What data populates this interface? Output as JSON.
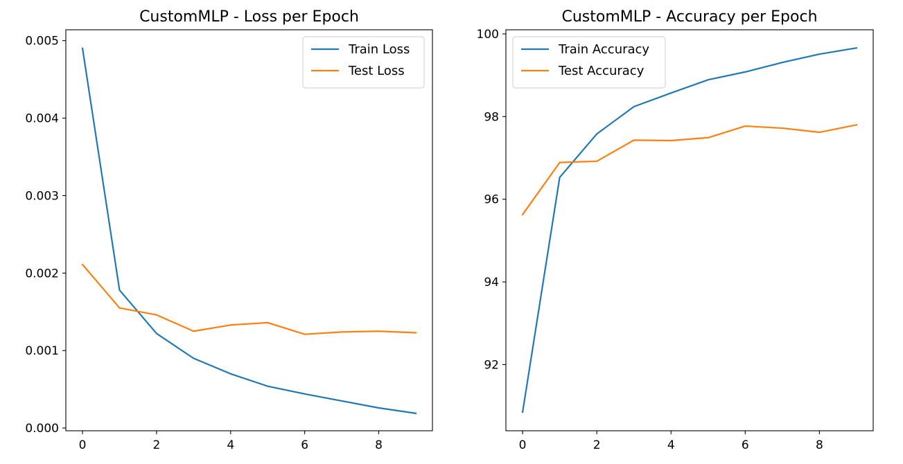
{
  "chart_data": [
    {
      "type": "line",
      "title": "CustomMLP - Loss per Epoch",
      "xlabel": "",
      "ylabel": "",
      "x": [
        0,
        1,
        2,
        3,
        4,
        5,
        6,
        7,
        8,
        9
      ],
      "xlim": [
        -0.45,
        9.45
      ],
      "ylim": [
        -3.5e-05,
        0.00514
      ],
      "xticks": [
        0,
        2,
        4,
        6,
        8
      ],
      "xtick_labels": [
        "0",
        "2",
        "4",
        "6",
        "8"
      ],
      "yticks": [
        0.0,
        0.001,
        0.002,
        0.003,
        0.004,
        0.005
      ],
      "ytick_labels": [
        "0.000",
        "0.001",
        "0.002",
        "0.003",
        "0.004",
        "0.005"
      ],
      "grid": false,
      "legend_position": "top-right",
      "series": [
        {
          "name": "Train Loss",
          "color": "#1f77b4",
          "values": [
            0.0049,
            0.00178,
            0.00122,
            0.0009,
            0.0007,
            0.00054,
            0.00044,
            0.00035,
            0.00026,
            0.00019
          ]
        },
        {
          "name": "Test Loss",
          "color": "#ff7f0e",
          "values": [
            0.00211,
            0.00155,
            0.00146,
            0.00125,
            0.00133,
            0.00136,
            0.00121,
            0.00124,
            0.00125,
            0.00123
          ]
        }
      ]
    },
    {
      "type": "line",
      "title": "CustomMLP - Accuracy per Epoch",
      "xlabel": "",
      "ylabel": "",
      "x": [
        0,
        1,
        2,
        3,
        4,
        5,
        6,
        7,
        8,
        9
      ],
      "xlim": [
        -0.45,
        9.45
      ],
      "ylim": [
        90.4,
        100.1
      ],
      "xticks": [
        0,
        2,
        4,
        6,
        8
      ],
      "xtick_labels": [
        "0",
        "2",
        "4",
        "6",
        "8"
      ],
      "yticks": [
        92,
        94,
        96,
        98,
        100
      ],
      "ytick_labels": [
        "92",
        "94",
        "96",
        "98",
        "100"
      ],
      "grid": false,
      "legend_position": "top-left",
      "series": [
        {
          "name": "Train Accuracy",
          "color": "#1f77b4",
          "values": [
            90.85,
            96.53,
            97.58,
            98.24,
            98.57,
            98.89,
            99.08,
            99.31,
            99.51,
            99.66
          ]
        },
        {
          "name": "Test Accuracy",
          "color": "#ff7f0e",
          "values": [
            95.63,
            96.89,
            96.92,
            97.43,
            97.42,
            97.49,
            97.77,
            97.72,
            97.62,
            97.8
          ]
        }
      ]
    }
  ]
}
